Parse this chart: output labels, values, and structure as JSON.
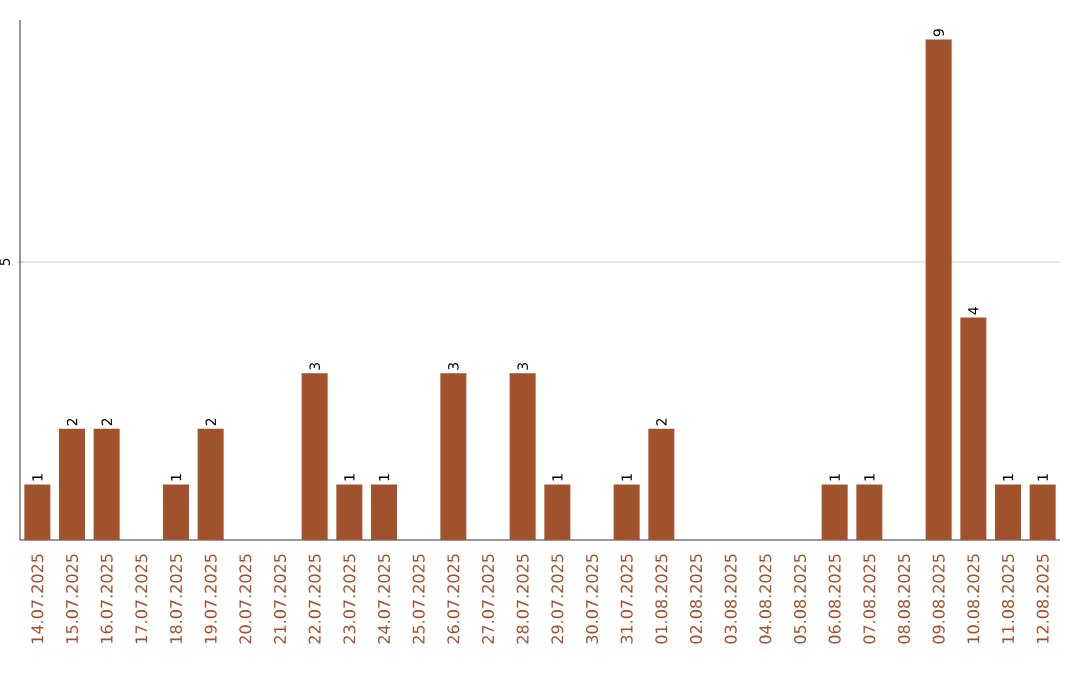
{
  "chart_data": {
    "type": "bar",
    "categories": [
      "14.07.2025",
      "15.07.2025",
      "16.07.2025",
      "17.07.2025",
      "18.07.2025",
      "19.07.2025",
      "20.07.2025",
      "21.07.2025",
      "22.07.2025",
      "23.07.2025",
      "24.07.2025",
      "25.07.2025",
      "26.07.2025",
      "27.07.2025",
      "28.07.2025",
      "29.07.2025",
      "30.07.2025",
      "31.07.2025",
      "01.08.2025",
      "02.08.2025",
      "03.08.2025",
      "04.08.2025",
      "05.08.2025",
      "06.08.2025",
      "07.08.2025",
      "08.08.2025",
      "09.08.2025",
      "10.08.2025",
      "11.08.2025",
      "12.08.2025"
    ],
    "values": [
      1,
      2,
      2,
      0,
      1,
      2,
      0,
      0,
      3,
      1,
      1,
      0,
      3,
      0,
      3,
      1,
      0,
      1,
      2,
      0,
      0,
      0,
      0,
      1,
      1,
      0,
      9,
      4,
      1,
      1
    ],
    "value_labels": [
      "1",
      "2",
      "2",
      null,
      "1",
      "2",
      null,
      null,
      "3",
      "1",
      "1",
      null,
      "3",
      null,
      "3",
      "1",
      null,
      "1",
      "2",
      null,
      null,
      null,
      null,
      "1",
      "1",
      null,
      "9",
      "4",
      "1",
      "1"
    ],
    "color": "#a0522d",
    "ylim": [
      0,
      9.35
    ],
    "yticks": [
      5
    ],
    "grid": "y"
  }
}
